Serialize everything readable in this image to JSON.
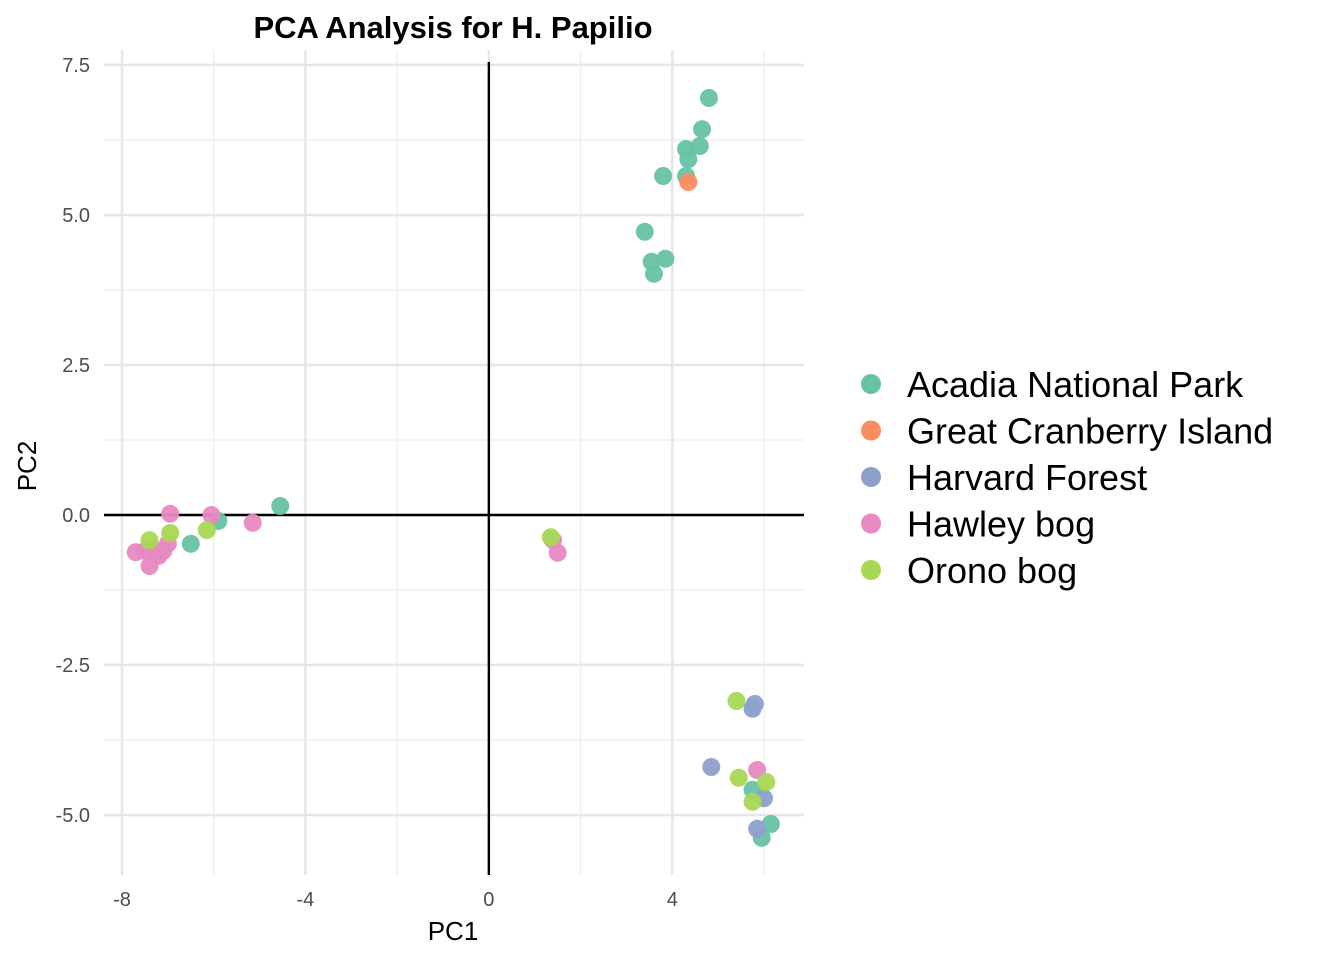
{
  "chart_data": {
    "type": "scatter",
    "title": "PCA Analysis for H. Papilio",
    "xlabel": "PC1",
    "ylabel": "PC2",
    "xlim": [
      -8.3,
      6.9
    ],
    "ylim": [
      -5.9,
      7.5
    ],
    "x_ticks": [
      {
        "value": -8,
        "label": "-8"
      },
      {
        "value": -4,
        "label": "-4"
      },
      {
        "value": 0,
        "label": "0"
      },
      {
        "value": 4,
        "label": "4"
      }
    ],
    "x_minor_ticks": [
      -6,
      -2,
      2,
      6
    ],
    "y_ticks": [
      {
        "value": 7.5,
        "label": "7.5"
      },
      {
        "value": 5.0,
        "label": "5.0"
      },
      {
        "value": 2.5,
        "label": "2.5"
      },
      {
        "value": 0.0,
        "label": "0.0"
      },
      {
        "value": -2.5,
        "label": "-2.5"
      },
      {
        "value": -5.0,
        "label": "-5.0"
      }
    ],
    "y_minor_ticks": [
      6.25,
      3.75,
      1.25,
      -1.25,
      -3.75
    ],
    "reference_lines": {
      "x": 0,
      "y": 0
    },
    "grid": true,
    "legend_position": "right",
    "series": [
      {
        "name": "Acadia National Park",
        "color": "#66c2a5",
        "points": [
          [
            4.8,
            6.95
          ],
          [
            4.65,
            6.43
          ],
          [
            4.6,
            6.15
          ],
          [
            4.3,
            6.1
          ],
          [
            4.35,
            5.93
          ],
          [
            3.8,
            5.65
          ],
          [
            4.3,
            5.65
          ],
          [
            3.4,
            4.72
          ],
          [
            3.55,
            4.22
          ],
          [
            3.85,
            4.27
          ],
          [
            3.6,
            4.02
          ],
          [
            -4.55,
            0.15
          ],
          [
            -5.9,
            -0.1
          ],
          [
            -6.5,
            -0.48
          ],
          [
            5.75,
            -4.58
          ],
          [
            6.15,
            -5.15
          ],
          [
            5.95,
            -5.38
          ]
        ]
      },
      {
        "name": "Great Cranberry Island",
        "color": "#fc8d62",
        "points": [
          [
            4.35,
            5.55
          ]
        ]
      },
      {
        "name": "Harvard Forest",
        "color": "#8da0cb",
        "points": [
          [
            5.8,
            -3.15
          ],
          [
            5.75,
            -3.23
          ],
          [
            4.85,
            -4.2
          ],
          [
            6.0,
            -4.72
          ],
          [
            5.85,
            -5.23
          ]
        ]
      },
      {
        "name": "Hawley bog",
        "color": "#e78ac3",
        "points": [
          [
            -6.95,
            0.02
          ],
          [
            -6.05,
            0.0
          ],
          [
            -5.15,
            -0.13
          ],
          [
            -7.7,
            -0.62
          ],
          [
            -7.5,
            -0.6
          ],
          [
            -7.3,
            -0.58
          ],
          [
            -7.1,
            -0.6
          ],
          [
            -7.2,
            -0.68
          ],
          [
            -7.0,
            -0.48
          ],
          [
            -7.4,
            -0.85
          ],
          [
            1.4,
            -0.42
          ],
          [
            1.5,
            -0.63
          ],
          [
            5.85,
            -4.25
          ]
        ]
      },
      {
        "name": "Orono bog",
        "color": "#a6d854",
        "points": [
          [
            -7.4,
            -0.42
          ],
          [
            -6.95,
            -0.3
          ],
          [
            -6.15,
            -0.25
          ],
          [
            1.35,
            -0.37
          ],
          [
            5.4,
            -3.1
          ],
          [
            5.45,
            -4.38
          ],
          [
            6.05,
            -4.45
          ],
          [
            5.75,
            -4.78
          ]
        ]
      }
    ]
  }
}
